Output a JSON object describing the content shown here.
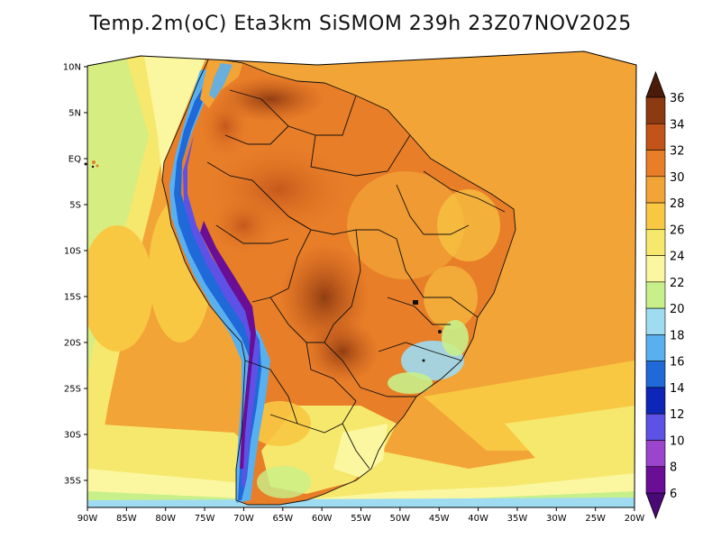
{
  "title": "Temp.2m(oC) Eta3km SiSMOM 239h 23Z07NOV2025",
  "map": {
    "variable": "2m air temperature",
    "units": "oC",
    "lon_range": [
      -90,
      -20
    ],
    "lat_range": [
      -38,
      11
    ],
    "lat_ticks": [
      {
        "value": 10,
        "label": "10N"
      },
      {
        "value": 5,
        "label": "5N"
      },
      {
        "value": 0,
        "label": "EQ"
      },
      {
        "value": -5,
        "label": "5S"
      },
      {
        "value": -10,
        "label": "10S"
      },
      {
        "value": -15,
        "label": "15S"
      },
      {
        "value": -20,
        "label": "20S"
      },
      {
        "value": -25,
        "label": "25S"
      },
      {
        "value": -30,
        "label": "30S"
      },
      {
        "value": -35,
        "label": "35S"
      }
    ],
    "lon_ticks": [
      {
        "value": -90,
        "label": "90W"
      },
      {
        "value": -85,
        "label": "85W"
      },
      {
        "value": -80,
        "label": "80W"
      },
      {
        "value": -75,
        "label": "75W"
      },
      {
        "value": -70,
        "label": "70W"
      },
      {
        "value": -65,
        "label": "65W"
      },
      {
        "value": -60,
        "label": "60W"
      },
      {
        "value": -55,
        "label": "55W"
      },
      {
        "value": -50,
        "label": "50W"
      },
      {
        "value": -45,
        "label": "45W"
      },
      {
        "value": -40,
        "label": "40W"
      },
      {
        "value": -35,
        "label": "35W"
      },
      {
        "value": -30,
        "label": "30W"
      },
      {
        "value": -25,
        "label": "25W"
      },
      {
        "value": -20,
        "label": "20W"
      }
    ]
  },
  "colorbar": {
    "levels": [
      {
        "label": "36",
        "color": "#6b2a0c"
      },
      {
        "label": "34",
        "color": "#8c3a12"
      },
      {
        "label": "32",
        "color": "#c2541a"
      },
      {
        "label": "30",
        "color": "#e87e28"
      },
      {
        "label": "28",
        "color": "#f2a436"
      },
      {
        "label": "26",
        "color": "#f8c843"
      },
      {
        "label": "24",
        "color": "#f6e86c"
      },
      {
        "label": "22",
        "color": "#fbf7a0"
      },
      {
        "label": "20",
        "color": "#c8f08a"
      },
      {
        "label": "18",
        "color": "#9fdcf2"
      },
      {
        "label": "16",
        "color": "#59b0ee"
      },
      {
        "label": "14",
        "color": "#1f69d8"
      },
      {
        "label": "12",
        "color": "#0d26b8"
      },
      {
        "label": "10",
        "color": "#5e52e6"
      },
      {
        "label": "8",
        "color": "#9b44cc"
      },
      {
        "label": "6",
        "color": "#6a0e95"
      }
    ],
    "top_arrow_color": "#4a1b08",
    "bottom_arrow_color": "#4a0a76"
  }
}
